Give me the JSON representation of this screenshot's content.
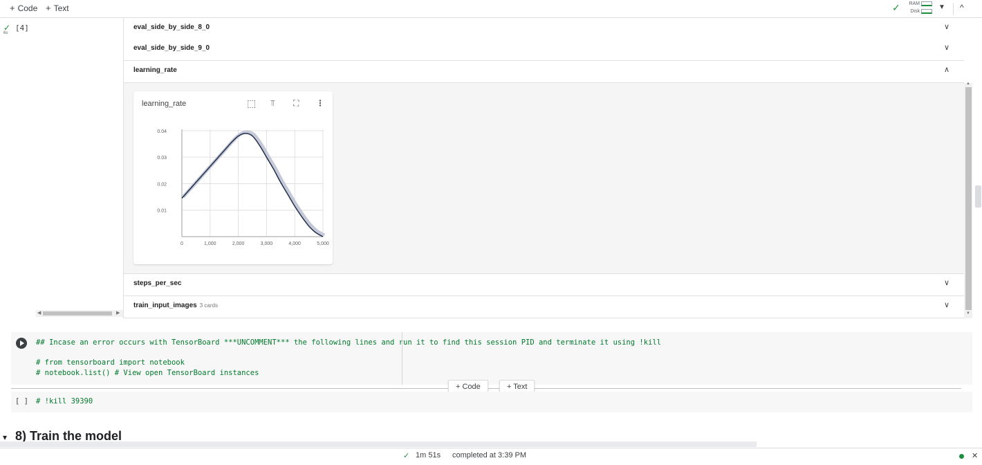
{
  "toolbar": {
    "code_label": "Code",
    "text_label": "Text",
    "resources": {
      "ram_label": "RAM",
      "disk_label": "Disk"
    }
  },
  "cell4": {
    "exec_label": "[4]",
    "time": "6s"
  },
  "output": {
    "rows": [
      {
        "label": "eval_side_by_side_8_0",
        "expanded": false
      },
      {
        "label": "eval_side_by_side_9_0",
        "expanded": false
      },
      {
        "label": "learning_rate",
        "expanded": true
      },
      {
        "label": "steps_per_sec",
        "expanded": false
      },
      {
        "label": "train_input_images",
        "sub": "3 cards",
        "expanded": false
      }
    ]
  },
  "chart_data": {
    "type": "line",
    "title": "learning_rate",
    "xlim": [
      0,
      5000
    ],
    "ylim": [
      0,
      0.04
    ],
    "x_ticks": [
      "0",
      "1,000",
      "2,000",
      "3,000",
      "4,000",
      "5,000"
    ],
    "y_ticks": [
      "0.01",
      "0.02",
      "0.03",
      "0.04"
    ],
    "series": [
      {
        "x": [
          0,
          250,
          500,
          750,
          1000,
          1250,
          1500,
          1750,
          2000,
          2250,
          2500,
          2750,
          3000,
          3250,
          3500,
          3750,
          4000,
          4250,
          4500,
          4750,
          5000
        ],
        "y": [
          0.0145,
          0.0175,
          0.0205,
          0.0235,
          0.0265,
          0.0295,
          0.0325,
          0.0355,
          0.038,
          0.039,
          0.038,
          0.0345,
          0.03,
          0.0255,
          0.0205,
          0.016,
          0.0115,
          0.0075,
          0.004,
          0.0015,
          0.0
        ],
        "color": "#212f4d"
      }
    ],
    "grid": true
  },
  "cell5": {
    "lines": [
      "## Incase an error occurs with TensorBoard ***UNCOMMENT*** the following lines and run it to find this session PID and terminate it using !kill",
      "# from tensorboard import notebook",
      "# notebook.list() # View open TensorBoard instances"
    ]
  },
  "insert": {
    "code_label": "+ Code",
    "text_label": "+ Text"
  },
  "cell6": {
    "exec_label": "[ ]",
    "code": "# !kill 39390"
  },
  "section": {
    "title": "8) Train the model"
  },
  "status": {
    "time": "1m 51s",
    "completed": "completed at 3:39 PM"
  }
}
